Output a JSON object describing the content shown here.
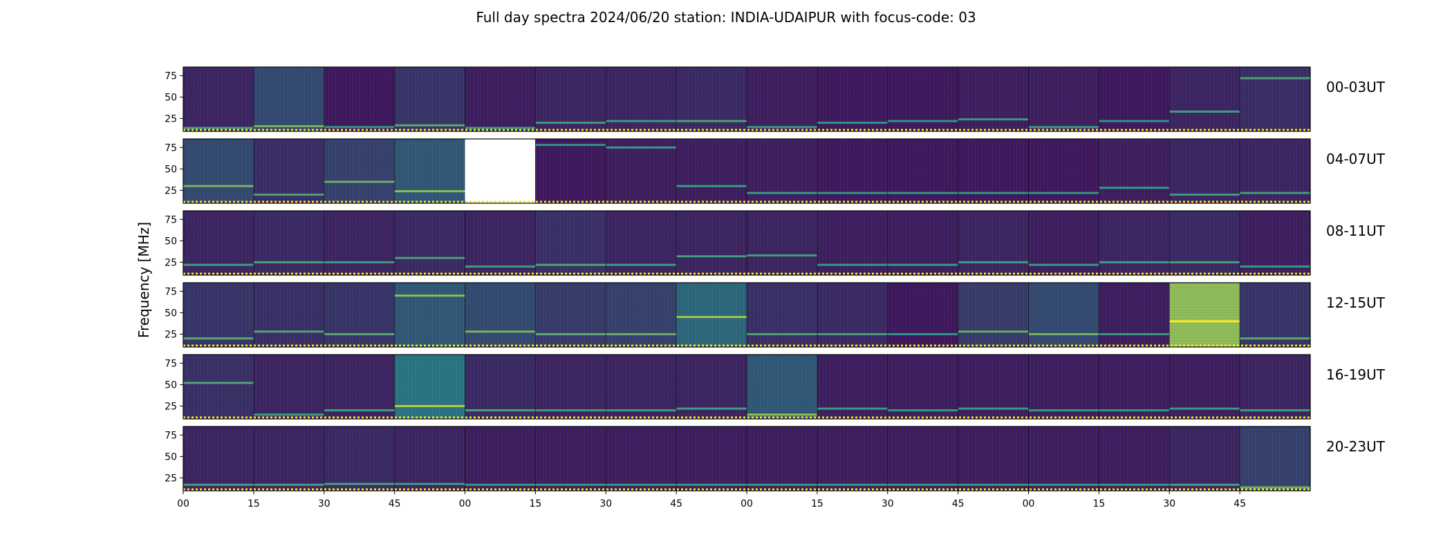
{
  "chart_data": {
    "type": "heatmap",
    "title": "Full day spectra 2024/06/20 station: INDIA-UDAIPUR with focus-code: 03",
    "ylabel": "Frequency [MHz]",
    "ylim": [
      10,
      85
    ],
    "y_ticks": [
      "25",
      "50",
      "75"
    ],
    "x_ticks": [
      "00",
      "15",
      "30",
      "45",
      "00",
      "15",
      "30",
      "45",
      "00",
      "15",
      "30",
      "45",
      "00",
      "15",
      "30",
      "45"
    ],
    "colormap": "viridis",
    "colors": {
      "low": "#440154",
      "mid": "#21918c",
      "high": "#fde725",
      "marker_line": "#fde725"
    },
    "rows": [
      {
        "label": "00-03UT",
        "panels": [
          {
            "intensity": 0.12,
            "band_mhz": 14
          },
          {
            "intensity": 0.25,
            "band_mhz": 16
          },
          {
            "intensity": 0.08,
            "band_mhz": 15
          },
          {
            "intensity": 0.18,
            "band_mhz": 17
          },
          {
            "intensity": 0.1,
            "band_mhz": 14
          },
          {
            "intensity": 0.12,
            "band_mhz": 20
          },
          {
            "intensity": 0.12,
            "band_mhz": 22
          },
          {
            "intensity": 0.14,
            "band_mhz": 22
          },
          {
            "intensity": 0.1,
            "band_mhz": 15
          },
          {
            "intensity": 0.08,
            "band_mhz": 20
          },
          {
            "intensity": 0.08,
            "band_mhz": 22
          },
          {
            "intensity": 0.1,
            "band_mhz": 24
          },
          {
            "intensity": 0.1,
            "band_mhz": 15
          },
          {
            "intensity": 0.08,
            "band_mhz": 22
          },
          {
            "intensity": 0.12,
            "band_mhz": 33
          },
          {
            "intensity": 0.15,
            "band_mhz": 72
          }
        ]
      },
      {
        "label": "04-07UT",
        "panels": [
          {
            "intensity": 0.25,
            "band_mhz": 30
          },
          {
            "intensity": 0.15,
            "band_mhz": 20
          },
          {
            "intensity": 0.22,
            "band_mhz": 35
          },
          {
            "intensity": 0.3,
            "band_mhz": 24
          },
          {
            "intensity": null,
            "band_mhz": null
          },
          {
            "intensity": 0.08,
            "band_mhz": 78
          },
          {
            "intensity": 0.1,
            "band_mhz": 75
          },
          {
            "intensity": 0.1,
            "band_mhz": 30
          },
          {
            "intensity": 0.1,
            "band_mhz": 22
          },
          {
            "intensity": 0.08,
            "band_mhz": 22
          },
          {
            "intensity": 0.08,
            "band_mhz": 22
          },
          {
            "intensity": 0.08,
            "band_mhz": 22
          },
          {
            "intensity": 0.08,
            "band_mhz": 22
          },
          {
            "intensity": 0.1,
            "band_mhz": 28
          },
          {
            "intensity": 0.12,
            "band_mhz": 20
          },
          {
            "intensity": 0.12,
            "band_mhz": 22
          }
        ]
      },
      {
        "label": "08-11UT",
        "panels": [
          {
            "intensity": 0.12,
            "band_mhz": 22
          },
          {
            "intensity": 0.14,
            "band_mhz": 25
          },
          {
            "intensity": 0.12,
            "band_mhz": 25
          },
          {
            "intensity": 0.14,
            "band_mhz": 30
          },
          {
            "intensity": 0.12,
            "band_mhz": 20
          },
          {
            "intensity": 0.16,
            "band_mhz": 22
          },
          {
            "intensity": 0.12,
            "band_mhz": 22
          },
          {
            "intensity": 0.12,
            "band_mhz": 32
          },
          {
            "intensity": 0.12,
            "band_mhz": 33
          },
          {
            "intensity": 0.1,
            "band_mhz": 22
          },
          {
            "intensity": 0.1,
            "band_mhz": 22
          },
          {
            "intensity": 0.12,
            "band_mhz": 25
          },
          {
            "intensity": 0.1,
            "band_mhz": 22
          },
          {
            "intensity": 0.12,
            "band_mhz": 25
          },
          {
            "intensity": 0.14,
            "band_mhz": 25
          },
          {
            "intensity": 0.1,
            "band_mhz": 20
          }
        ]
      },
      {
        "label": "12-15UT",
        "panels": [
          {
            "intensity": 0.18,
            "band_mhz": 20
          },
          {
            "intensity": 0.16,
            "band_mhz": 28
          },
          {
            "intensity": 0.18,
            "band_mhz": 25
          },
          {
            "intensity": 0.3,
            "band_mhz": 70
          },
          {
            "intensity": 0.25,
            "band_mhz": 28
          },
          {
            "intensity": 0.2,
            "band_mhz": 25
          },
          {
            "intensity": 0.22,
            "band_mhz": 25
          },
          {
            "intensity": 0.35,
            "band_mhz": 45
          },
          {
            "intensity": 0.16,
            "band_mhz": 25
          },
          {
            "intensity": 0.14,
            "band_mhz": 25
          },
          {
            "intensity": 0.08,
            "band_mhz": 25
          },
          {
            "intensity": 0.2,
            "band_mhz": 28
          },
          {
            "intensity": 0.25,
            "band_mhz": 25
          },
          {
            "intensity": 0.1,
            "band_mhz": 25
          },
          {
            "intensity": 0.75,
            "band_mhz": 40
          },
          {
            "intensity": 0.18,
            "band_mhz": 20
          }
        ]
      },
      {
        "label": "16-19UT",
        "panels": [
          {
            "intensity": 0.16,
            "band_mhz": 52
          },
          {
            "intensity": 0.12,
            "band_mhz": 15
          },
          {
            "intensity": 0.12,
            "band_mhz": 20
          },
          {
            "intensity": 0.4,
            "band_mhz": 25
          },
          {
            "intensity": 0.14,
            "band_mhz": 20
          },
          {
            "intensity": 0.12,
            "band_mhz": 20
          },
          {
            "intensity": 0.12,
            "band_mhz": 20
          },
          {
            "intensity": 0.12,
            "band_mhz": 22
          },
          {
            "intensity": 0.3,
            "band_mhz": 15
          },
          {
            "intensity": 0.1,
            "band_mhz": 22
          },
          {
            "intensity": 0.1,
            "band_mhz": 20
          },
          {
            "intensity": 0.1,
            "band_mhz": 22
          },
          {
            "intensity": 0.1,
            "band_mhz": 20
          },
          {
            "intensity": 0.1,
            "band_mhz": 20
          },
          {
            "intensity": 0.1,
            "band_mhz": 22
          },
          {
            "intensity": 0.12,
            "band_mhz": 20
          }
        ]
      },
      {
        "label": "20-23UT",
        "panels": [
          {
            "intensity": 0.12,
            "band_mhz": 17
          },
          {
            "intensity": 0.12,
            "band_mhz": 17
          },
          {
            "intensity": 0.14,
            "band_mhz": 18
          },
          {
            "intensity": 0.12,
            "band_mhz": 18
          },
          {
            "intensity": 0.1,
            "band_mhz": 17
          },
          {
            "intensity": 0.1,
            "band_mhz": 17
          },
          {
            "intensity": 0.1,
            "band_mhz": 17
          },
          {
            "intensity": 0.1,
            "band_mhz": 17
          },
          {
            "intensity": 0.1,
            "band_mhz": 17
          },
          {
            "intensity": 0.1,
            "band_mhz": 17
          },
          {
            "intensity": 0.1,
            "band_mhz": 17
          },
          {
            "intensity": 0.1,
            "band_mhz": 17
          },
          {
            "intensity": 0.1,
            "band_mhz": 17
          },
          {
            "intensity": 0.1,
            "band_mhz": 17
          },
          {
            "intensity": 0.12,
            "band_mhz": 17
          },
          {
            "intensity": 0.22,
            "band_mhz": 14
          }
        ]
      }
    ]
  }
}
